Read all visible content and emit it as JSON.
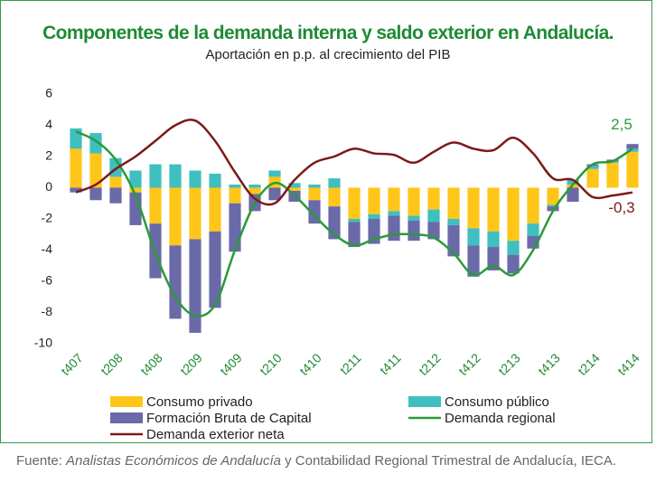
{
  "chart_data": {
    "type": "bar_line",
    "title": "Componentes de la demanda interna y saldo exterior en Andalucía.",
    "subtitle": "Aportación en p.p. al crecimiento del PIB",
    "categories": [
      "t407",
      null,
      "t208",
      null,
      "t408",
      null,
      "t209",
      null,
      "t409",
      null,
      "t210",
      null,
      "t410",
      null,
      "t211",
      null,
      "t411",
      null,
      "t212",
      null,
      "t412",
      null,
      "t213",
      null,
      "t413",
      null,
      "t214",
      null,
      "t414"
    ],
    "series": [
      {
        "name": "Consumo privado",
        "color": "#ffc61a",
        "kind": "bar",
        "values": [
          2.5,
          2.2,
          0.7,
          -0.3,
          -2.3,
          -3.7,
          -3.3,
          -2.8,
          -1.0,
          -0.4,
          0.7,
          -0.2,
          -0.8,
          -1.2,
          -2.0,
          -1.7,
          -1.5,
          -1.8,
          -1.4,
          -2.0,
          -2.6,
          -2.8,
          -3.4,
          -2.3,
          -1.1,
          0.2,
          1.2,
          1.6,
          2.3
        ]
      },
      {
        "name": "Consumo público",
        "color": "#3fbfc0",
        "kind": "bar",
        "values": [
          1.3,
          1.3,
          1.2,
          1.1,
          1.5,
          1.5,
          1.1,
          0.9,
          0.2,
          0.2,
          0.4,
          0.3,
          0.2,
          0.6,
          -0.2,
          -0.3,
          -0.3,
          -0.3,
          -0.8,
          -0.4,
          -1.1,
          -1.0,
          -0.9,
          -0.8,
          -0.1,
          0.3,
          0.2,
          0.1,
          0.2
        ]
      },
      {
        "name": "Formación Bruta de Capital",
        "color": "#6a6aa8",
        "kind": "bar",
        "values": [
          -0.3,
          -0.8,
          -1.0,
          -2.1,
          -3.5,
          -4.7,
          -6.0,
          -4.9,
          -3.1,
          -1.1,
          -0.8,
          -0.7,
          -1.5,
          -2.1,
          -1.6,
          -1.6,
          -1.6,
          -1.3,
          -1.1,
          -2.0,
          -2.0,
          -1.5,
          -1.2,
          -0.8,
          -0.3,
          -0.9,
          0.1,
          0.1,
          0.3
        ]
      },
      {
        "name": "Demanda regional",
        "color": "#2a9a3a",
        "kind": "line",
        "values": [
          3.6,
          3.0,
          1.8,
          -0.5,
          -4.2,
          -7.0,
          -8.2,
          -7.5,
          -4.0,
          -1.0,
          0.3,
          -0.5,
          -1.8,
          -3.0,
          -3.7,
          -3.3,
          -3.0,
          -3.0,
          -3.2,
          -4.2,
          -5.6,
          -5.0,
          -5.6,
          -4.0,
          -1.5,
          0.2,
          1.5,
          1.7,
          2.5
        ]
      },
      {
        "name": "Demanda exterior neta",
        "color": "#7b1a1a",
        "kind": "line",
        "values": [
          -0.3,
          0.2,
          1.2,
          2.0,
          3.0,
          4.0,
          4.3,
          3.0,
          1.0,
          -0.7,
          -1.0,
          0.5,
          1.6,
          2.0,
          2.5,
          2.2,
          2.1,
          1.6,
          2.3,
          2.9,
          2.5,
          2.4,
          3.2,
          2.2,
          0.6,
          0.5,
          -0.6,
          -0.5,
          -0.3
        ]
      }
    ],
    "annotations": [
      {
        "text": "2,5",
        "color": "#2a9a3a"
      },
      {
        "text": "-0,3",
        "color": "#7b1a1a"
      }
    ],
    "ylim": [
      -10,
      6
    ],
    "yticks": [
      -10,
      -8,
      -6,
      -4,
      -2,
      0,
      2,
      4,
      6
    ],
    "source": {
      "prefix": "Fuente:",
      "italic": "Analistas Económicos de Andalucía",
      "rest": "y Contabilidad Regional Trimestral de Andalucía, IECA."
    }
  }
}
